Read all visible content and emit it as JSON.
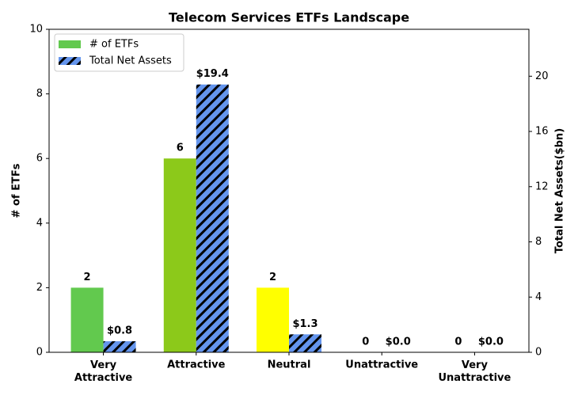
{
  "chart_data": {
    "type": "bar",
    "title": "Telecom Services ETFs Landscape",
    "categories": [
      "Very Attractive",
      "Attractive",
      "Neutral",
      "Unattractive",
      "Very Unattractive"
    ],
    "y_label": "# of ETFs",
    "y2_label": "Total Net Assets($bn)",
    "series": [
      {
        "name": "# of ETFs",
        "color": "#62c94e",
        "colors": [
          "#62c94e",
          "#8cc91a",
          "#ffff00",
          "#ff9900",
          "#ff0000"
        ],
        "values": [
          2,
          6,
          2,
          0,
          0
        ]
      },
      {
        "name": "Total Net Assets",
        "color": "#6495ed",
        "hatch": true,
        "axis": "y2",
        "values": [
          0.8,
          19.4,
          1.3,
          0,
          0
        ],
        "value_labels": [
          "$0.8",
          "$19.4",
          "$1.3",
          "$0.0",
          "$0.0"
        ]
      }
    ],
    "ylim": [
      0,
      10
    ],
    "yticks": [
      0,
      2,
      4,
      6,
      8,
      10
    ],
    "y2lim": [
      0,
      23.4
    ],
    "y2ticks": [
      0,
      4,
      8,
      12,
      16,
      20
    ],
    "legend": "upper left"
  }
}
